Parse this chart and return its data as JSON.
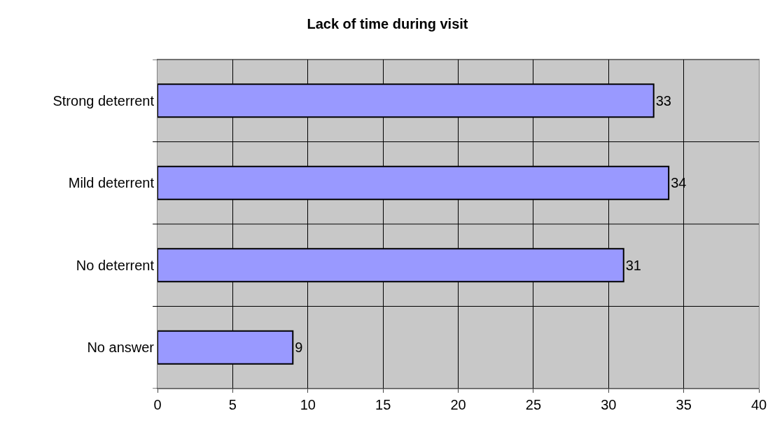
{
  "chart_data": {
    "type": "bar",
    "title": "Lack of time during visit",
    "orientation": "horizontal",
    "categories": [
      "Strong deterrent",
      "Mild deterrent",
      "No deterrent",
      "No answer"
    ],
    "values": [
      33,
      34,
      31,
      9
    ],
    "color": "#9999ff",
    "xlim": [
      0,
      40
    ],
    "xticks": [
      0,
      5,
      10,
      15,
      20,
      25,
      30,
      35,
      40
    ],
    "grid": true,
    "data_labels": true
  }
}
